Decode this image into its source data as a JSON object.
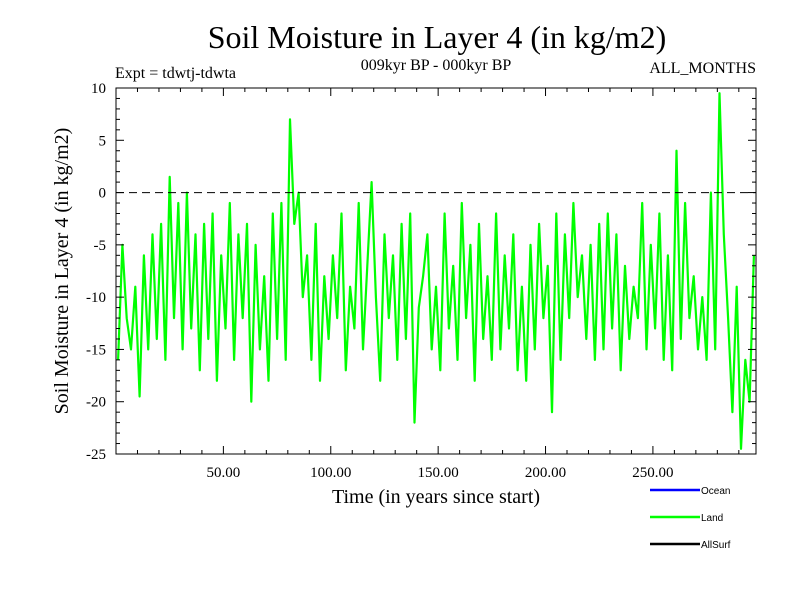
{
  "chart_data": {
    "type": "line",
    "title": "Soil Moisture in Layer 4 (in kg/m2)",
    "subtitle": "009kyr BP - 000kyr BP",
    "experiment_label": "Expt = tdwtj-tdwta",
    "season_label": "ALL_MONTHS",
    "xlabel": "Time (in years since start)",
    "ylabel": "Soil Moisture in Layer 4 (in kg/m2)",
    "xlim": [
      0,
      298
    ],
    "ylim": [
      -25,
      10
    ],
    "x_tick_values": [
      50,
      100,
      150,
      200,
      250
    ],
    "x_tick_labels": [
      "50.00",
      "100.00",
      "150.00",
      "200.00",
      "250.00"
    ],
    "y_tick_values": [
      10,
      5,
      0,
      -5,
      -10,
      -15,
      -20,
      -25
    ],
    "y_tick_labels": [
      "10",
      "5",
      "0",
      "-5",
      "-10",
      "-15",
      "-20",
      "-25"
    ],
    "reference_line": {
      "y": 0,
      "style": "dashed"
    },
    "legend": [
      {
        "name": "Ocean",
        "color": "#0000ff"
      },
      {
        "name": "Land",
        "color": "#00ff00"
      },
      {
        "name": "AllSurf",
        "color": "#000000"
      }
    ],
    "series": [
      {
        "name": "Land",
        "color": "#00ff00",
        "x": [
          1,
          3,
          5,
          7,
          9,
          11,
          13,
          15,
          17,
          19,
          21,
          23,
          25,
          27,
          29,
          31,
          33,
          35,
          37,
          39,
          41,
          43,
          45,
          47,
          49,
          51,
          53,
          55,
          57,
          59,
          61,
          63,
          65,
          67,
          69,
          71,
          73,
          75,
          77,
          79,
          81,
          83,
          85,
          87,
          89,
          91,
          93,
          95,
          97,
          99,
          101,
          103,
          105,
          107,
          109,
          111,
          113,
          115,
          117,
          119,
          121,
          123,
          125,
          127,
          129,
          131,
          133,
          135,
          137,
          139,
          141,
          143,
          145,
          147,
          149,
          151,
          153,
          155,
          157,
          159,
          161,
          163,
          165,
          167,
          169,
          171,
          173,
          175,
          177,
          179,
          181,
          183,
          185,
          187,
          189,
          191,
          193,
          195,
          197,
          199,
          201,
          203,
          205,
          207,
          209,
          211,
          213,
          215,
          217,
          219,
          221,
          223,
          225,
          227,
          229,
          231,
          233,
          235,
          237,
          239,
          241,
          243,
          245,
          247,
          249,
          251,
          253,
          255,
          257,
          259,
          261,
          263,
          265,
          267,
          269,
          271,
          273,
          275,
          277,
          279,
          281,
          283,
          285,
          287,
          289,
          291,
          293,
          295,
          297
        ],
        "values": [
          -16,
          -5,
          -12,
          -15,
          -9,
          -19.5,
          -6,
          -15,
          -4,
          -14,
          -3,
          -16,
          1.5,
          -12,
          -1,
          -15,
          0,
          -13,
          -4,
          -17,
          -3,
          -14,
          -2,
          -18,
          -6,
          -13,
          -1,
          -16,
          -4,
          -12,
          -3,
          -20,
          -5,
          -15,
          -8,
          -18,
          -2,
          -14,
          -1,
          -16,
          7,
          -3,
          0,
          -10,
          -6,
          -16,
          -3,
          -18,
          -8,
          -14,
          -6,
          -12,
          -2,
          -17,
          -9,
          -13,
          -1,
          -15,
          -7,
          1,
          -10,
          -18,
          -4,
          -12,
          -6,
          -16,
          -3,
          -14,
          -2,
          -22,
          -11,
          -8,
          -4,
          -15,
          -9,
          -17,
          -2,
          -13,
          -7,
          -16,
          -1,
          -12,
          -5,
          -18,
          -3,
          -14,
          -8,
          -16,
          -2,
          -15,
          -6,
          -13,
          -4,
          -17,
          -9,
          -18,
          -5,
          -15,
          -3,
          -12,
          -7,
          -21,
          -2,
          -16,
          -4,
          -12,
          -1,
          -10,
          -6,
          -14,
          -5,
          -16,
          -3,
          -15,
          -2,
          -13,
          -4,
          -17,
          -7,
          -14,
          -9,
          -12,
          -1,
          -15,
          -5,
          -13,
          -2,
          -16,
          -6,
          -17,
          4,
          -14,
          -1,
          -12,
          -8,
          -15,
          -10,
          -16,
          0,
          -15,
          9.5,
          -4,
          -12,
          -21,
          -9,
          -24.5,
          -16,
          -20,
          -6
        ]
      }
    ]
  }
}
